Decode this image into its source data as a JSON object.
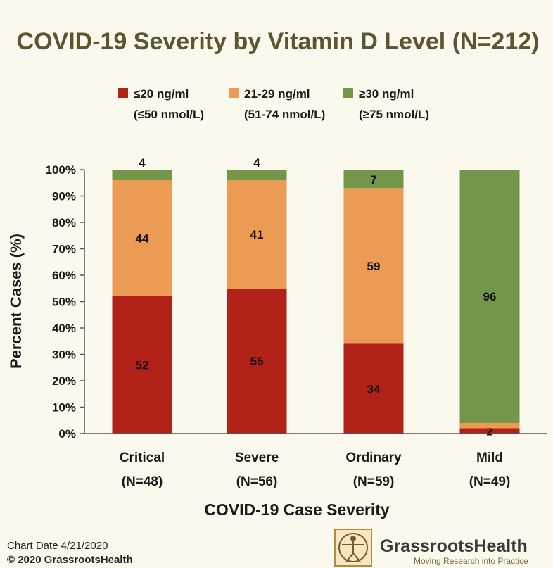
{
  "chart_data": {
    "type": "bar",
    "stacked": true,
    "title": "COVID-19 Severity by Vitamin D Level (N=212)",
    "xlabel": "COVID-19 Case Severity",
    "ylabel": "Percent Cases (%)",
    "ylim": [
      0,
      100
    ],
    "yticks": [
      "0%",
      "10%",
      "20%",
      "30%",
      "40%",
      "50%",
      "60%",
      "70%",
      "80%",
      "90%",
      "100%"
    ],
    "categories": [
      {
        "name": "Critical",
        "n": "(N=48)"
      },
      {
        "name": "Severe",
        "n": "(N=56)"
      },
      {
        "name": "Ordinary",
        "n": "(N=59)"
      },
      {
        "name": "Mild",
        "n": "(N=49)"
      }
    ],
    "series": [
      {
        "name": "≤20 ng/ml",
        "sub": "(≤50 nmol/L)",
        "color": "#b22218",
        "values": [
          52,
          55,
          34,
          2
        ],
        "labels": [
          "52",
          "55",
          "34",
          "2"
        ]
      },
      {
        "name": "21-29 ng/ml",
        "sub": "(51-74 nmol/L)",
        "color": "#ec9b55",
        "values": [
          44,
          41,
          59,
          2
        ],
        "labels": [
          "44",
          "41",
          "59",
          ""
        ]
      },
      {
        "name": "≥30 ng/ml",
        "sub": "(≥75 nmol/L)",
        "color": "#73964a",
        "values": [
          4,
          4,
          7,
          96
        ],
        "labels": [
          "4",
          "4",
          "7",
          "96"
        ]
      }
    ],
    "grid": false,
    "legend_position": "top"
  },
  "footer": {
    "chart_date": "Chart Date 4/21/2020",
    "copyright": "© 2020 GrassrootsHealth",
    "brand_name": "GrassrootsHealth",
    "brand_tagline": "Moving Research into Practice"
  }
}
